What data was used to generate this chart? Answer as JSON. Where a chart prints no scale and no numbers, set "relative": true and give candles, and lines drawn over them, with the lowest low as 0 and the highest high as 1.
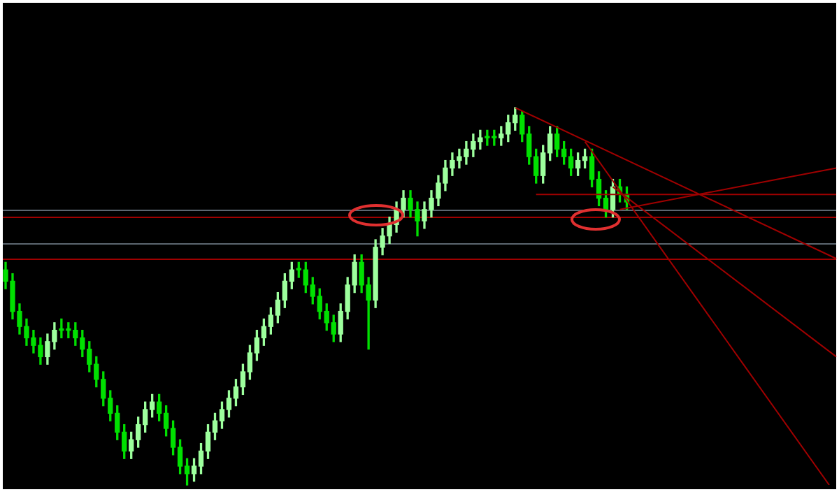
{
  "chart_data": {
    "type": "candlestick",
    "relative": true,
    "tick_labels": false,
    "colors": [
      "#00e000",
      "#00e000",
      "#00e000",
      "#00e000",
      "#00e000",
      "#00e000",
      "#9dff9d",
      "#9dff9d",
      "#00e000",
      "#00e000",
      "#00e000",
      "#00e000",
      "#00e000",
      "#00e000",
      "#00e000",
      "#00e000",
      "#00e000",
      "#00e000",
      "#9dff9d",
      "#9dff9d",
      "#9dff9d",
      "#9dff9d",
      "#00e000",
      "#00e000",
      "#00e000",
      "#00e000",
      "#00e000",
      "#9dff9d",
      "#9dff9d",
      "#9dff9d",
      "#9dff9d",
      "#9dff9d",
      "#9dff9d",
      "#9dff9d",
      "#9dff9d",
      "#9dff9d",
      "#9dff9d",
      "#9dff9d",
      "#9dff9d",
      "#9dff9d",
      "#9dff9d",
      "#9dff9d",
      "#00e000",
      "#00e000",
      "#00e000",
      "#00e000",
      "#00e000",
      "#00e000",
      "#9dff9d",
      "#9dff9d",
      "#9dff9d",
      "#00e000",
      "#00e000",
      "#9dff9d",
      "#9dff9d",
      "#9dff9d",
      "#9dff9d",
      "#9dff9d",
      "#00e000",
      "#00e000",
      "#9dff9d",
      "#9dff9d",
      "#9dff9d",
      "#9dff9d",
      "#9dff9d",
      "#9dff9d",
      "#9dff9d",
      "#9dff9d",
      "#9dff9d",
      "#00e000",
      "#00e000",
      "#9dff9d",
      "#9dff9d",
      "#9dff9d",
      "#00e000",
      "#00e000",
      "#00e000",
      "#9dff9d",
      "#9dff9d",
      "#00e000",
      "#00e000",
      "#00e000",
      "#9dff9d",
      "#9dff9d",
      "#00e000",
      "#00e000",
      "#00e000",
      "#9dff9d",
      "#00e000",
      "#00e000",
      null,
      null,
      null,
      null,
      null,
      null,
      null,
      null,
      null,
      null,
      null,
      null,
      null,
      null,
      null,
      null,
      null,
      null,
      null,
      null,
      null,
      null,
      null,
      null,
      null,
      null,
      null,
      null,
      null,
      null
    ],
    "categories": [
      null,
      null,
      null,
      null,
      null,
      null,
      null,
      null,
      null,
      null,
      null,
      null,
      null,
      null,
      null,
      null,
      null,
      null,
      null,
      null,
      null,
      null,
      null,
      null,
      null,
      null,
      null,
      null,
      null,
      null,
      null,
      null,
      null,
      null,
      null,
      null,
      null,
      null,
      null,
      null,
      null,
      null,
      null,
      null,
      null,
      null,
      null,
      null,
      null,
      null,
      null,
      null,
      null,
      null,
      null,
      null,
      null,
      null,
      null,
      null,
      null,
      null,
      null,
      null,
      null,
      null,
      null,
      null,
      null,
      null,
      null,
      null,
      null,
      null,
      null,
      null,
      null,
      null,
      null,
      null,
      null,
      null,
      null,
      null,
      null,
      null,
      null,
      null,
      null,
      null,
      null,
      null,
      null,
      null,
      null,
      null,
      null,
      null,
      null,
      null,
      null,
      null,
      null,
      null,
      null,
      null,
      null,
      null,
      null,
      null,
      null,
      null,
      null,
      null,
      null,
      null,
      null,
      null,
      null,
      null
    ],
    "ohlc": [
      [
        0.57,
        0.59,
        0.52,
        0.54
      ],
      [
        0.54,
        0.56,
        0.44,
        0.46
      ],
      [
        0.46,
        0.48,
        0.4,
        0.42
      ],
      [
        0.42,
        0.44,
        0.37,
        0.39
      ],
      [
        0.39,
        0.41,
        0.35,
        0.37
      ],
      [
        0.37,
        0.39,
        0.32,
        0.34
      ],
      [
        0.34,
        0.4,
        0.32,
        0.38
      ],
      [
        0.38,
        0.43,
        0.36,
        0.41
      ],
      [
        0.41,
        0.44,
        0.39,
        0.41
      ],
      [
        0.41,
        0.43,
        0.39,
        0.41
      ],
      [
        0.41,
        0.43,
        0.37,
        0.39
      ],
      [
        0.39,
        0.41,
        0.34,
        0.36
      ],
      [
        0.36,
        0.38,
        0.3,
        0.32
      ],
      [
        0.32,
        0.34,
        0.26,
        0.28
      ],
      [
        0.28,
        0.3,
        0.21,
        0.23
      ],
      [
        0.23,
        0.25,
        0.17,
        0.19
      ],
      [
        0.19,
        0.21,
        0.12,
        0.14
      ],
      [
        0.14,
        0.16,
        0.07,
        0.09
      ],
      [
        0.09,
        0.14,
        0.07,
        0.12
      ],
      [
        0.12,
        0.18,
        0.1,
        0.16
      ],
      [
        0.16,
        0.22,
        0.14,
        0.2
      ],
      [
        0.2,
        0.24,
        0.18,
        0.22
      ],
      [
        0.22,
        0.24,
        0.17,
        0.19
      ],
      [
        0.19,
        0.21,
        0.13,
        0.15
      ],
      [
        0.15,
        0.17,
        0.08,
        0.1
      ],
      [
        0.1,
        0.12,
        0.03,
        0.05
      ],
      [
        0.05,
        0.07,
        0,
        0.03
      ],
      [
        0.03,
        0.07,
        0.01,
        0.05
      ],
      [
        0.05,
        0.11,
        0.03,
        0.09
      ],
      [
        0.09,
        0.16,
        0.07,
        0.14
      ],
      [
        0.14,
        0.19,
        0.12,
        0.17
      ],
      [
        0.17,
        0.22,
        0.15,
        0.2
      ],
      [
        0.2,
        0.25,
        0.18,
        0.23
      ],
      [
        0.23,
        0.28,
        0.21,
        0.26
      ],
      [
        0.26,
        0.32,
        0.24,
        0.3
      ],
      [
        0.3,
        0.37,
        0.28,
        0.35
      ],
      [
        0.35,
        0.41,
        0.33,
        0.39
      ],
      [
        0.39,
        0.44,
        0.37,
        0.42
      ],
      [
        0.42,
        0.47,
        0.4,
        0.45
      ],
      [
        0.45,
        0.51,
        0.43,
        0.49
      ],
      [
        0.49,
        0.56,
        0.47,
        0.54
      ],
      [
        0.54,
        0.59,
        0.52,
        0.57
      ],
      [
        0.57,
        0.59,
        0.55,
        0.57
      ],
      [
        0.57,
        0.59,
        0.51,
        0.53
      ],
      [
        0.53,
        0.55,
        0.48,
        0.5
      ],
      [
        0.5,
        0.52,
        0.44,
        0.46
      ],
      [
        0.46,
        0.48,
        0.41,
        0.43
      ],
      [
        0.43,
        0.45,
        0.38,
        0.4
      ],
      [
        0.4,
        0.48,
        0.38,
        0.46
      ],
      [
        0.46,
        0.55,
        0.44,
        0.53
      ],
      [
        0.53,
        0.61,
        0.51,
        0.59
      ],
      [
        0.59,
        0.61,
        0.51,
        0.53
      ],
      [
        0.53,
        0.55,
        0.36,
        0.49
      ],
      [
        0.49,
        0.65,
        0.47,
        0.63
      ],
      [
        0.63,
        0.68,
        0.61,
        0.66
      ],
      [
        0.66,
        0.71,
        0.64,
        0.69
      ],
      [
        0.69,
        0.75,
        0.67,
        0.73
      ],
      [
        0.73,
        0.78,
        0.71,
        0.76
      ],
      [
        0.76,
        0.78,
        0.71,
        0.73
      ],
      [
        0.73,
        0.75,
        0.66,
        0.7
      ],
      [
        0.7,
        0.75,
        0.68,
        0.73
      ],
      [
        0.73,
        0.78,
        0.71,
        0.76
      ],
      [
        0.76,
        0.82,
        0.74,
        0.8
      ],
      [
        0.8,
        0.86,
        0.78,
        0.84
      ],
      [
        0.84,
        0.88,
        0.82,
        0.86
      ],
      [
        0.86,
        0.89,
        0.84,
        0.87
      ],
      [
        0.87,
        0.91,
        0.85,
        0.89
      ],
      [
        0.89,
        0.93,
        0.87,
        0.91
      ],
      [
        0.91,
        0.94,
        0.89,
        0.92
      ],
      [
        0.92,
        0.94,
        0.9,
        0.92
      ],
      [
        0.92,
        0.94,
        0.9,
        0.92
      ],
      [
        0.92,
        0.95,
        0.9,
        0.93
      ],
      [
        0.93,
        0.98,
        0.91,
        0.96
      ],
      [
        0.96,
        1,
        0.94,
        0.98
      ],
      [
        0.98,
        0.99,
        0.91,
        0.93
      ],
      [
        0.93,
        0.95,
        0.85,
        0.87
      ],
      [
        0.87,
        0.89,
        0.8,
        0.82
      ],
      [
        0.82,
        0.9,
        0.8,
        0.88
      ],
      [
        0.88,
        0.95,
        0.86,
        0.93
      ],
      [
        0.93,
        0.95,
        0.87,
        0.89
      ],
      [
        0.89,
        0.91,
        0.85,
        0.87
      ],
      [
        0.87,
        0.89,
        0.82,
        0.84
      ],
      [
        0.84,
        0.88,
        0.82,
        0.86
      ],
      [
        0.86,
        0.89,
        0.84,
        0.87
      ],
      [
        0.87,
        0.89,
        0.79,
        0.81
      ],
      [
        0.81,
        0.83,
        0.74,
        0.76
      ],
      [
        0.76,
        0.78,
        0.71,
        0.73
      ],
      [
        0.73,
        0.81,
        0.71,
        0.79
      ],
      [
        0.79,
        0.81,
        0.75,
        0.77
      ],
      [
        0.77,
        0.79,
        0.73,
        0.75
      ],
      null,
      null,
      null,
      null,
      null,
      null,
      null,
      null,
      null,
      null,
      null,
      null,
      null,
      null,
      null,
      null,
      null,
      null,
      null,
      null,
      null,
      null,
      null,
      null,
      null,
      null,
      null,
      null,
      null,
      null
    ],
    "series": [
      {
        "type": "line",
        "color": "#a00000",
        "values": [
          null,
          null,
          null,
          null,
          null,
          null,
          null,
          null,
          null,
          null,
          null,
          null,
          null,
          null,
          null,
          null,
          null,
          null,
          null,
          null,
          null,
          null,
          null,
          null,
          null,
          null,
          null,
          null,
          null,
          null,
          null,
          null,
          null,
          null,
          null,
          null,
          null,
          null,
          null,
          null,
          null,
          null,
          null,
          null,
          null,
          null,
          null,
          null,
          null,
          null,
          null,
          null,
          null,
          null,
          null,
          null,
          null,
          null,
          null,
          null,
          null,
          null,
          null,
          null,
          null,
          null,
          null,
          null,
          null,
          null,
          null,
          null,
          null,
          1,
          null,
          null,
          null,
          null,
          null,
          null,
          null,
          null,
          null,
          null,
          null,
          null,
          null,
          null,
          null,
          null,
          null,
          null,
          null,
          null,
          null,
          null,
          null,
          null,
          null,
          null,
          null,
          null,
          null,
          null,
          null,
          null,
          null,
          null,
          null,
          null,
          null,
          null,
          null,
          null,
          null,
          null,
          null,
          null,
          null,
          0.6
        ]
      },
      {
        "type": "line",
        "color": "#a00000",
        "values": [
          null,
          null,
          null,
          null,
          null,
          null,
          null,
          null,
          null,
          null,
          null,
          null,
          null,
          null,
          null,
          null,
          null,
          null,
          null,
          null,
          null,
          null,
          null,
          null,
          null,
          null,
          null,
          null,
          null,
          null,
          null,
          null,
          null,
          null,
          null,
          null,
          null,
          null,
          null,
          null,
          null,
          null,
          null,
          null,
          null,
          null,
          null,
          null,
          null,
          null,
          null,
          null,
          null,
          null,
          null,
          null,
          null,
          null,
          null,
          null,
          null,
          null,
          null,
          null,
          null,
          null,
          null,
          null,
          null,
          null,
          null,
          null,
          null,
          null,
          null,
          null,
          null,
          null,
          null,
          null,
          null,
          null,
          null,
          null,
          null,
          null,
          null,
          0.79,
          null,
          null,
          null,
          null,
          null,
          null,
          null,
          null,
          null,
          null,
          null,
          null,
          null,
          null,
          null,
          null,
          null,
          null,
          null,
          null,
          null,
          null,
          null,
          null,
          null,
          null,
          null,
          null,
          null,
          null,
          null,
          0.34
        ]
      },
      {
        "type": "line",
        "color": "#a00000",
        "values": [
          null,
          null,
          null,
          null,
          null,
          null,
          null,
          null,
          null,
          null,
          null,
          null,
          null,
          null,
          null,
          null,
          null,
          null,
          null,
          null,
          null,
          null,
          null,
          null,
          null,
          null,
          null,
          null,
          null,
          null,
          null,
          null,
          null,
          null,
          null,
          null,
          null,
          null,
          null,
          null,
          null,
          null,
          null,
          null,
          null,
          null,
          null,
          null,
          null,
          null,
          null,
          null,
          null,
          null,
          null,
          null,
          null,
          null,
          null,
          null,
          null,
          null,
          null,
          null,
          null,
          null,
          null,
          null,
          null,
          null,
          null,
          null,
          null,
          null,
          null,
          null,
          null,
          null,
          null,
          null,
          null,
          null,
          null,
          0.91,
          null,
          null,
          null,
          null,
          null,
          null,
          null,
          null,
          null,
          null,
          null,
          null,
          null,
          null,
          null,
          null,
          null,
          null,
          null,
          null,
          null,
          null,
          null,
          null,
          null,
          null,
          null,
          null,
          null,
          null,
          null,
          null,
          null,
          null,
          0,
          null
        ]
      },
      {
        "type": "line",
        "color": "#a00000",
        "values": [
          null,
          null,
          null,
          null,
          null,
          null,
          null,
          null,
          null,
          null,
          null,
          null,
          null,
          null,
          null,
          null,
          null,
          null,
          null,
          null,
          null,
          null,
          null,
          null,
          null,
          null,
          null,
          null,
          null,
          null,
          null,
          null,
          null,
          null,
          null,
          null,
          null,
          null,
          null,
          null,
          null,
          null,
          null,
          null,
          null,
          null,
          null,
          null,
          null,
          null,
          null,
          null,
          null,
          null,
          null,
          null,
          null,
          null,
          null,
          null,
          null,
          null,
          null,
          null,
          null,
          null,
          null,
          null,
          null,
          null,
          null,
          null,
          null,
          null,
          null,
          null,
          null,
          null,
          null,
          null,
          null,
          null,
          null,
          null,
          null,
          null,
          null,
          null,
          0.73,
          null,
          null,
          null,
          null,
          null,
          null,
          null,
          null,
          null,
          null,
          null,
          null,
          null,
          null,
          null,
          null,
          null,
          null,
          null,
          null,
          null,
          null,
          null,
          null,
          null,
          null,
          null,
          null,
          null,
          null,
          0.84
        ]
      },
      {
        "type": "line",
        "color": "#a00000",
        "values": [
          null,
          null,
          null,
          null,
          null,
          null,
          null,
          null,
          null,
          null,
          null,
          null,
          null,
          null,
          null,
          null,
          null,
          null,
          null,
          null,
          null,
          null,
          null,
          null,
          null,
          null,
          null,
          null,
          null,
          null,
          null,
          null,
          null,
          null,
          null,
          null,
          null,
          null,
          null,
          null,
          null,
          null,
          null,
          null,
          null,
          null,
          null,
          null,
          null,
          null,
          null,
          null,
          null,
          null,
          null,
          null,
          null,
          null,
          null,
          null,
          null,
          null,
          null,
          null,
          null,
          null,
          null,
          null,
          null,
          null,
          null,
          null,
          null,
          null,
          null,
          null,
          0.77,
          null,
          null,
          null,
          null,
          null,
          null,
          null,
          null,
          null,
          null,
          null,
          null,
          null,
          null,
          null,
          null,
          null,
          null,
          null,
          null,
          null,
          null,
          null,
          null,
          null,
          null,
          null,
          null,
          null,
          null,
          null,
          null,
          null,
          null,
          null,
          null,
          null,
          null,
          null,
          null,
          null,
          null,
          0.77
        ]
      }
    ],
    "ref_lines": [
      {
        "axis": "y",
        "value": 0.73,
        "color": "#5c6670"
      },
      {
        "axis": "y",
        "value": 0.71,
        "color": "#a00000"
      },
      {
        "axis": "y",
        "value": 0.64,
        "color": "#5c6670"
      },
      {
        "axis": "y",
        "value": 0.6,
        "color": "#a00000"
      }
    ]
  }
}
